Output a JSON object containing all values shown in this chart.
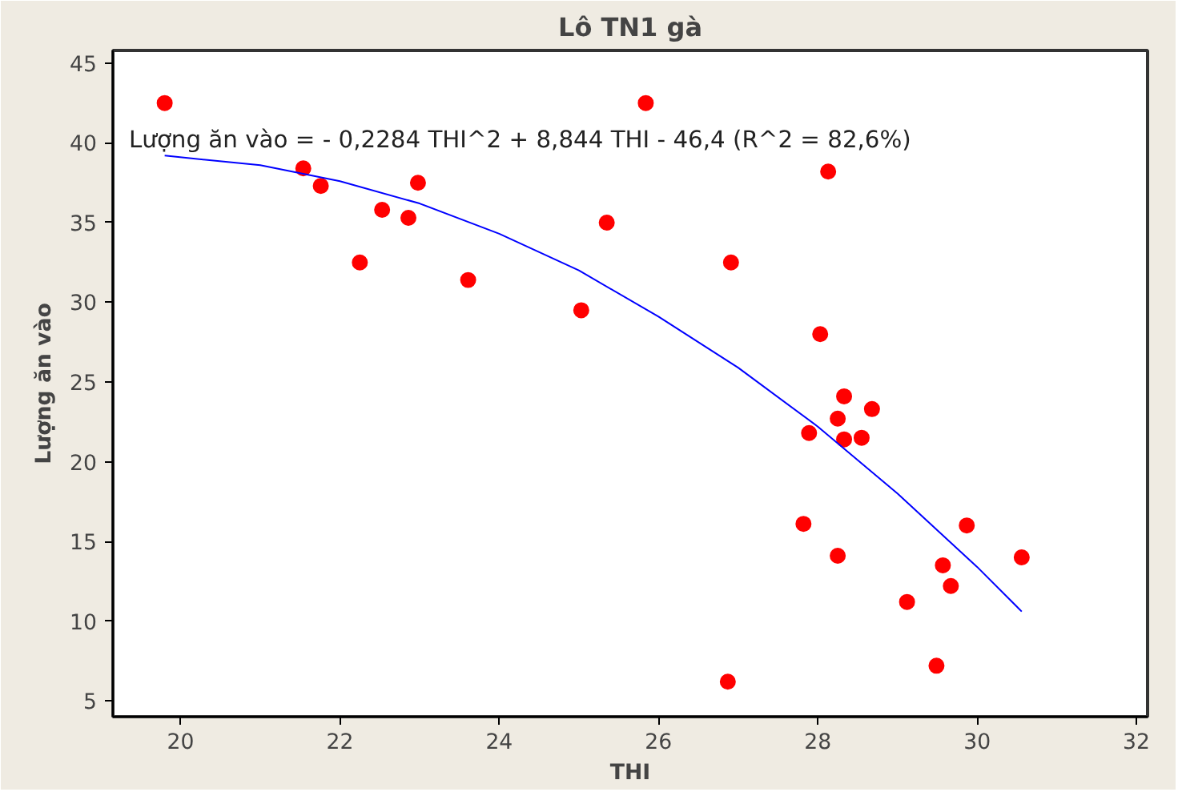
{
  "chart_data": {
    "type": "scatter",
    "title": "Lô TN1 gà",
    "xlabel": "THI",
    "ylabel": "Lượng ăn vào",
    "annotations": [
      "Lượng ăn vào = - 0,2284 THI^2 + 8,844 THI - 46,4  (R^2 = 82,6%)"
    ],
    "xlim": [
      19.15,
      32.14
    ],
    "ylim": [
      4.0,
      45.8
    ],
    "xticks": [
      20,
      22,
      24,
      26,
      28,
      30,
      32
    ],
    "yticks": [
      5,
      10,
      15,
      20,
      25,
      30,
      35,
      40,
      45
    ],
    "grid": false,
    "series": [
      {
        "marker": "circle",
        "color": "#ff0000",
        "x": [
          19.8,
          21.54,
          21.76,
          22.25,
          22.53,
          22.86,
          22.98,
          23.61,
          25.03,
          25.35,
          25.84,
          26.91,
          26.87,
          28.13,
          28.03,
          28.33,
          28.25,
          28.68,
          27.89,
          28.33,
          28.55,
          27.82,
          28.25,
          29.87,
          30.56,
          29.57,
          29.67,
          29.12,
          29.49
        ],
        "values": [
          42.5,
          38.4,
          37.3,
          32.5,
          35.8,
          35.3,
          37.5,
          31.4,
          29.5,
          35.0,
          42.5,
          32.5,
          6.2,
          38.2,
          28.0,
          24.1,
          22.7,
          23.3,
          21.8,
          21.4,
          21.5,
          16.1,
          14.1,
          16.0,
          14.0,
          13.5,
          12.2,
          11.2,
          7.2
        ]
      },
      {
        "type": "line",
        "color": "#0000ff",
        "x": [
          19.8,
          21,
          22,
          23,
          24,
          25,
          26,
          27,
          28,
          29,
          30,
          30.56
        ],
        "values": [
          39.2,
          38.6,
          37.6,
          36.2,
          34.3,
          32.0,
          29.1,
          25.9,
          22.2,
          18.0,
          13.4,
          10.6
        ]
      }
    ]
  }
}
